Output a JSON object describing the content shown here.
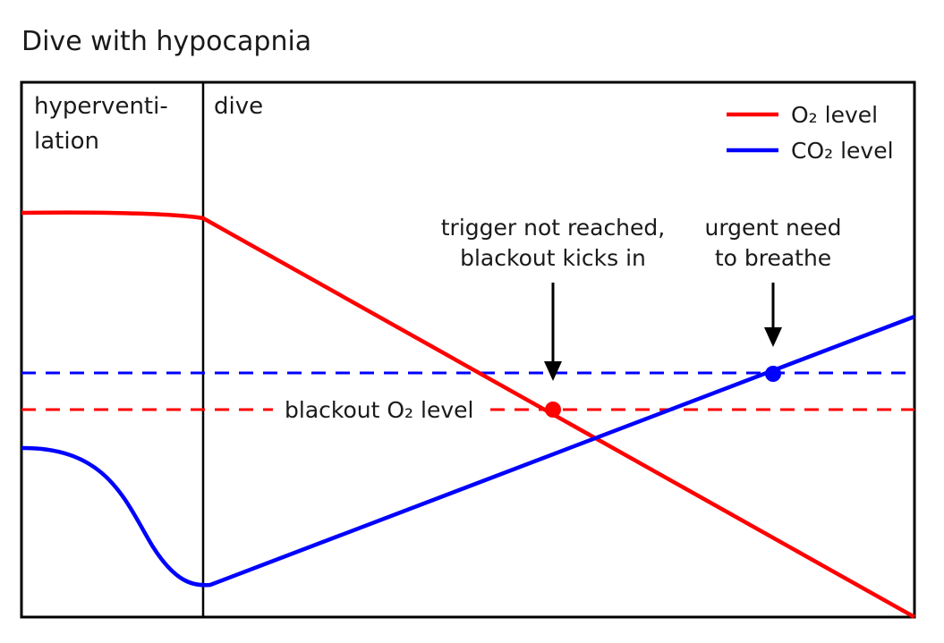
{
  "title": "Dive with hypocapnia",
  "phases": {
    "phase1_line1": "hyperventi-",
    "phase1_line2": "lation",
    "phase2": "dive"
  },
  "legend": {
    "o2_label": "O₂ level",
    "co2_label": "CO₂ level",
    "placement": "top-right"
  },
  "annotations": {
    "blackout_line1": "trigger not reached,",
    "blackout_line2": "blackout kicks in",
    "urgent_line1": "urgent need",
    "urgent_line2": "to breathe",
    "blackout_level_label": "blackout O₂ level"
  },
  "colors": {
    "o2": "#ff0000",
    "co2": "#0000ff",
    "frame": "#000000"
  },
  "icons": {
    "blackout_arrow": "down-arrow-icon",
    "urgent_arrow": "down-arrow-icon"
  }
}
